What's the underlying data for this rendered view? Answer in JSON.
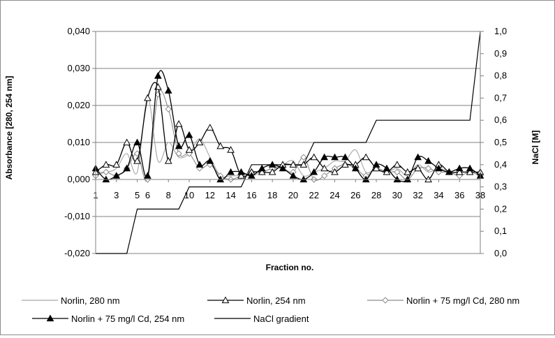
{
  "chart_data": {
    "type": "line",
    "title": "",
    "xlabel": "Fraction no.",
    "ylabel": "Absorbance [280, 254 nm]",
    "y2label": "NaCl [M]",
    "x": [
      1,
      2,
      3,
      4,
      5,
      6,
      7,
      8,
      9,
      10,
      11,
      12,
      13,
      14,
      15,
      16,
      17,
      18,
      19,
      20,
      21,
      22,
      23,
      24,
      25,
      26,
      27,
      28,
      29,
      30,
      31,
      32,
      33,
      34,
      35,
      36,
      37,
      38
    ],
    "x_tick_labels": [
      "1",
      "3",
      "5",
      "6",
      "8",
      "10",
      "12",
      "14",
      "16",
      "18",
      "20",
      "22",
      "24",
      "26",
      "28",
      "30",
      "32",
      "34",
      "36",
      "38"
    ],
    "ylim": [
      -0.02,
      0.04
    ],
    "y_tick_labels": [
      "-0,020",
      "-0,010",
      "0,000",
      "0,010",
      "0,020",
      "0,030",
      "0,040"
    ],
    "y2lim": [
      0,
      1.0
    ],
    "y2_tick_labels": [
      "0,0",
      "0,1",
      "0,2",
      "0,3",
      "0,4",
      "0,5",
      "0,6",
      "0,7",
      "0,8",
      "0,9",
      "1,0"
    ],
    "grid": "horizontal",
    "legend_position": "bottom",
    "series": [
      {
        "name": "Norlin, 280 nm",
        "axis": "left",
        "marker": "none",
        "color": "#a6a6a6",
        "values": [
          0.002,
          0.002,
          0.003,
          0.007,
          0.002,
          0.022,
          0.005,
          0.01,
          0.006,
          0.007,
          0.011,
          0.006,
          0.001,
          0.001,
          0.001,
          0.001,
          0.002,
          0.003,
          0.004,
          0.005,
          0.001,
          0.002,
          0.003,
          0.005,
          0.005,
          0.008,
          0.002,
          0.003,
          0.002,
          0.003,
          0.001,
          0.004,
          0.002,
          0.003,
          0.002,
          0.001,
          0.002,
          0.001
        ]
      },
      {
        "name": "Norlin, 254 nm",
        "axis": "left",
        "marker": "open-triangle",
        "color": "#000000",
        "values": [
          0.002,
          0.004,
          0.004,
          0.01,
          0.005,
          0.022,
          0.025,
          0.005,
          0.015,
          0.008,
          0.01,
          0.014,
          0.009,
          0.008,
          0.001,
          0.002,
          0.002,
          0.002,
          0.004,
          0.004,
          0.004,
          0.006,
          0.003,
          0.002,
          0.004,
          0.004,
          0.006,
          0.003,
          0.002,
          0.004,
          0.002,
          0.003,
          0.0,
          0.004,
          0.002,
          0.002,
          0.002,
          0.002
        ]
      },
      {
        "name": "Norlin + 75 mg/l Cd, 280 nm",
        "axis": "left",
        "marker": "open-diamond",
        "color": "#8c8c8c",
        "values": [
          0.001,
          0.002,
          0.001,
          0.003,
          0.007,
          0.0,
          0.023,
          0.019,
          0.007,
          0.007,
          0.003,
          0.004,
          0.001,
          0.0,
          0.001,
          0.002,
          0.002,
          0.003,
          0.003,
          0.002,
          0.006,
          0.0,
          0.001,
          0.003,
          0.004,
          0.003,
          0.001,
          0.003,
          0.002,
          0.002,
          0.0,
          0.003,
          0.003,
          0.002,
          0.002,
          0.001,
          0.002,
          0.001
        ]
      },
      {
        "name": "Norlin + 75 mg/l Cd, 254 nm",
        "axis": "left",
        "marker": "filled-triangle",
        "color": "#000000",
        "values": [
          0.003,
          0.0,
          0.001,
          0.003,
          0.01,
          0.001,
          0.028,
          0.024,
          0.009,
          0.012,
          0.004,
          0.005,
          0.0,
          0.002,
          0.002,
          0.001,
          0.003,
          0.004,
          0.003,
          0.001,
          0.0,
          0.002,
          0.006,
          0.006,
          0.006,
          0.003,
          0.0,
          0.004,
          0.003,
          0.0,
          0.0,
          0.006,
          0.005,
          0.003,
          0.002,
          0.003,
          0.003,
          0.001
        ]
      },
      {
        "name": "NaCl gradient",
        "axis": "right",
        "marker": "none",
        "color": "#000000",
        "values": [
          0.0,
          0.0,
          0.0,
          0.0,
          0.2,
          0.2,
          0.2,
          0.2,
          0.2,
          0.3,
          0.3,
          0.3,
          0.3,
          0.3,
          0.3,
          0.4,
          0.4,
          0.4,
          0.4,
          0.4,
          0.4,
          0.5,
          0.5,
          0.5,
          0.5,
          0.5,
          0.5,
          0.6,
          0.6,
          0.6,
          0.6,
          0.6,
          0.6,
          0.6,
          0.6,
          0.6,
          0.6,
          1.0
        ]
      }
    ]
  }
}
